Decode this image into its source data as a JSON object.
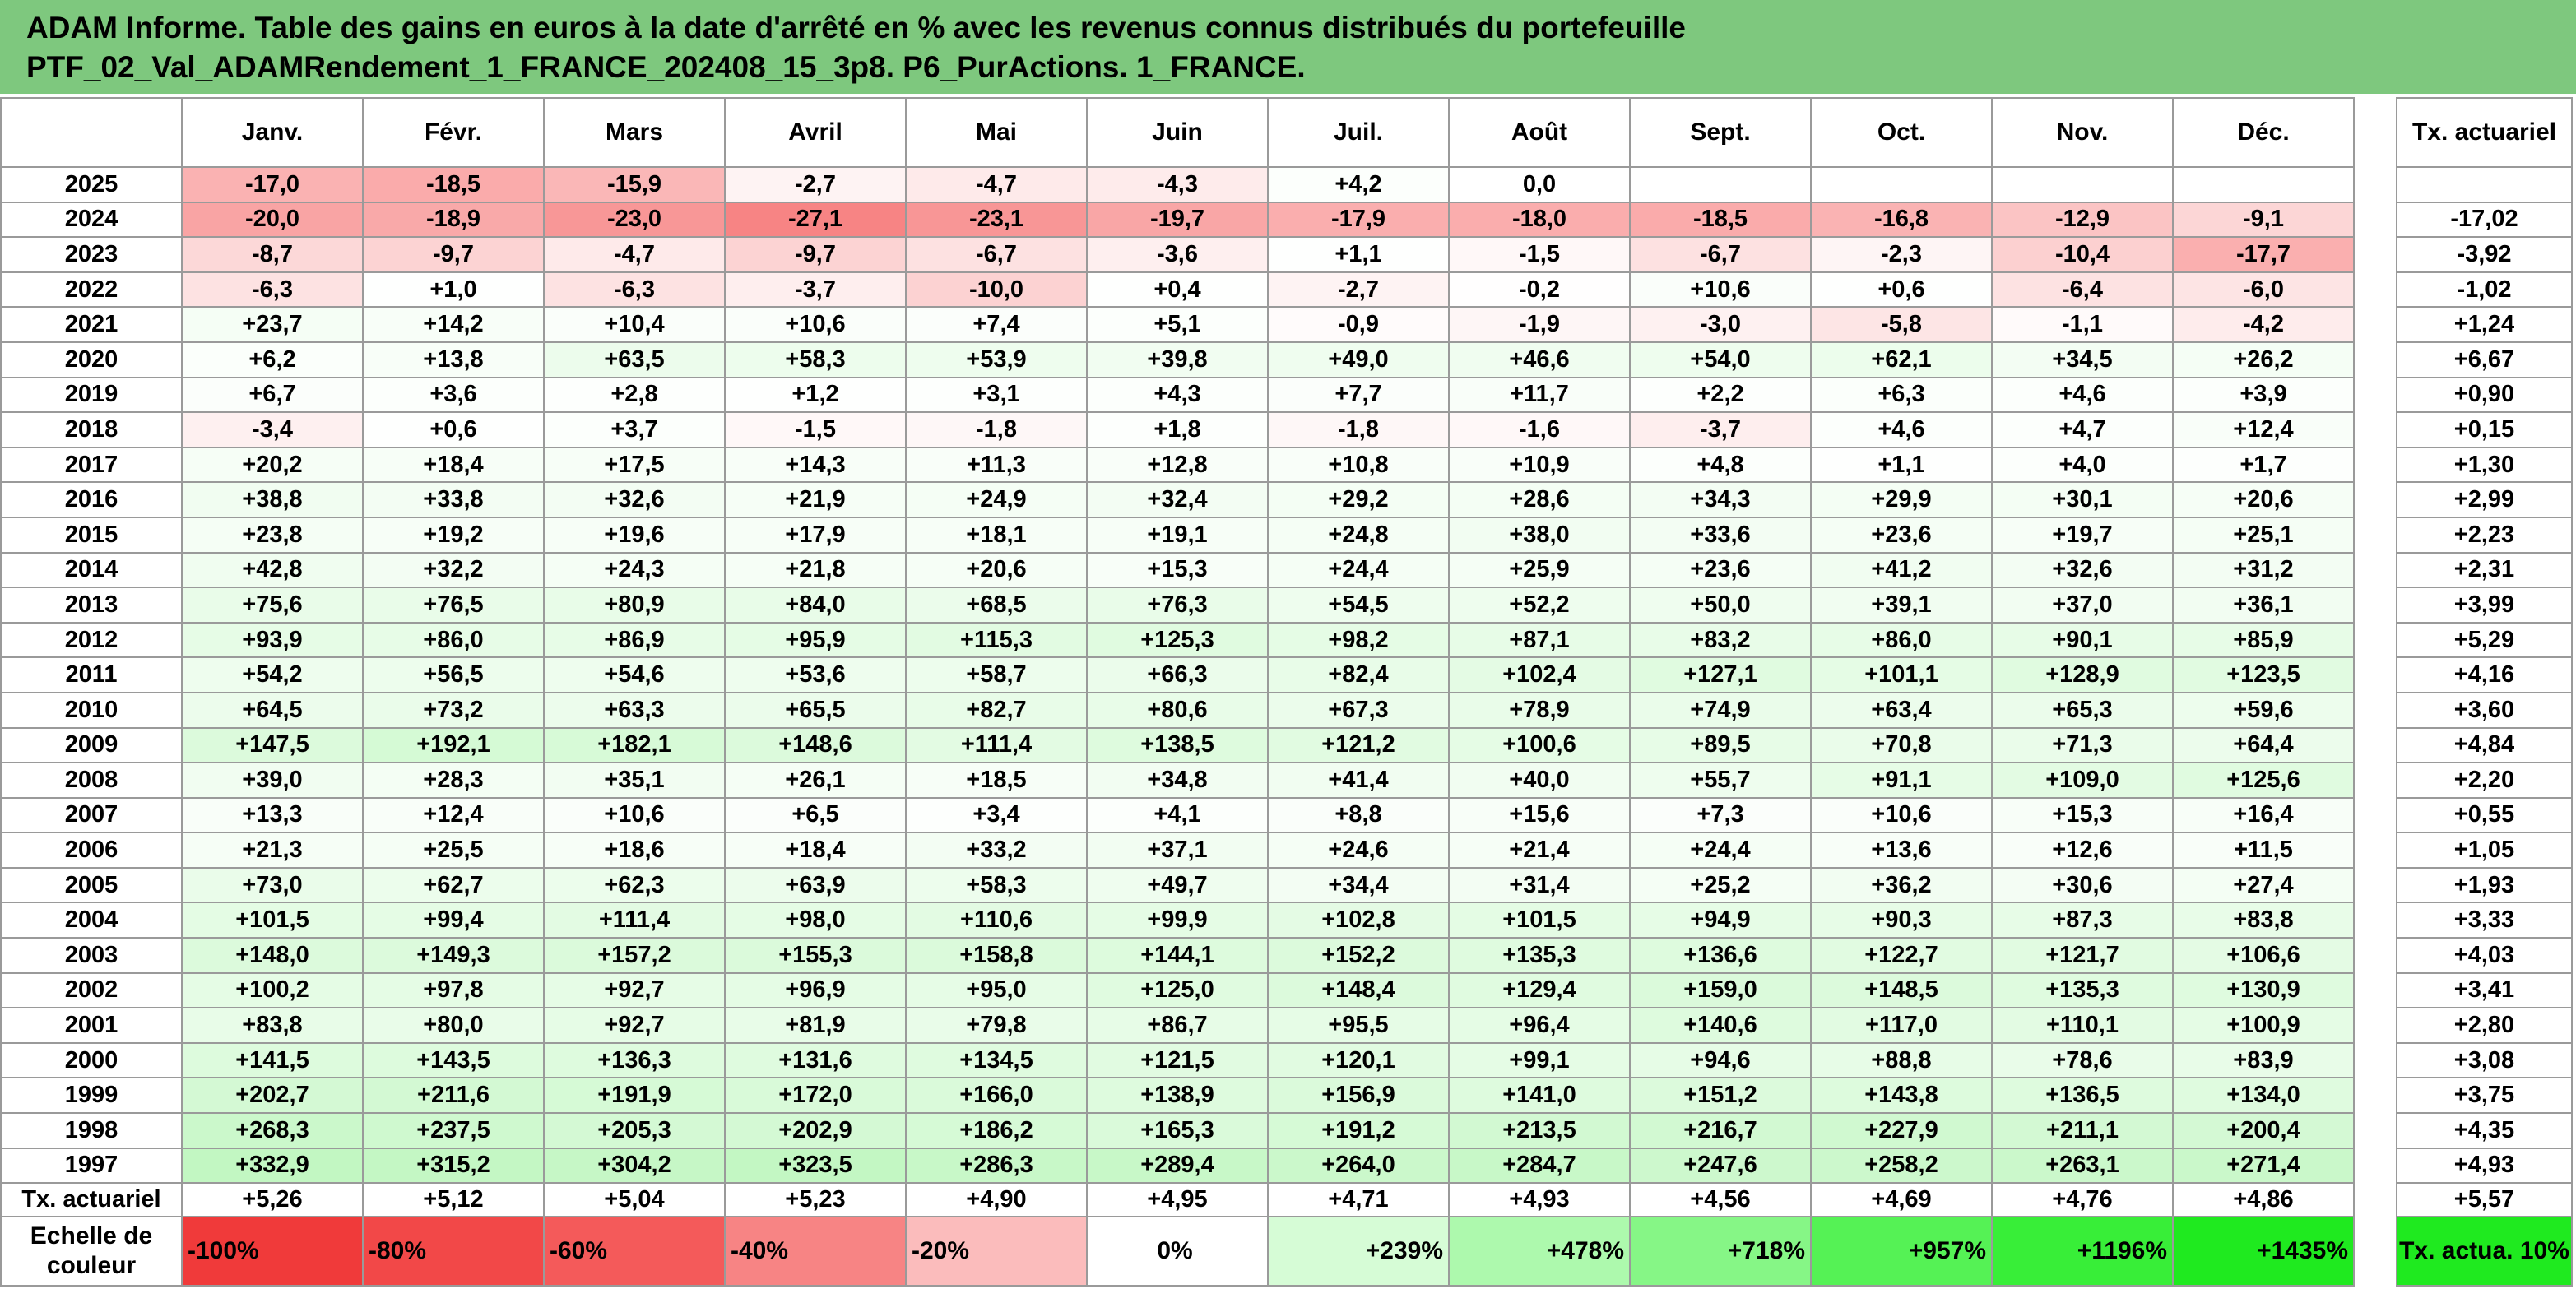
{
  "title": {
    "line1": "ADAM Informe. Table des gains en euros à la date d'arrêté en % avec les revenus connus distribués du portefeuille",
    "line2": "PTF_02_Val_ADAMRendement_1_FRANCE_202408_15_3p8. P6_PurActions. 1_FRANCE."
  },
  "months": [
    "Janv.",
    "Févr.",
    "Mars",
    "Avril",
    "Mai",
    "Juin",
    "Juil.",
    "Août",
    "Sept.",
    "Oct.",
    "Nov.",
    "Déc."
  ],
  "actuarial_header": "Tx. actuariel",
  "rows": [
    {
      "year": "2025",
      "vals": [
        "-17,0",
        "-18,5",
        "-15,9",
        "-2,7",
        "-4,7",
        "-4,3",
        "+4,2",
        "0,0",
        "",
        "",
        "",
        ""
      ],
      "act": ""
    },
    {
      "year": "2024",
      "vals": [
        "-20,0",
        "-18,9",
        "-23,0",
        "-27,1",
        "-23,1",
        "-19,7",
        "-17,9",
        "-18,0",
        "-18,5",
        "-16,8",
        "-12,9",
        "-9,1"
      ],
      "act": "-17,02"
    },
    {
      "year": "2023",
      "vals": [
        "-8,7",
        "-9,7",
        "-4,7",
        "-9,7",
        "-6,7",
        "-3,6",
        "+1,1",
        "-1,5",
        "-6,7",
        "-2,3",
        "-10,4",
        "-17,7"
      ],
      "act": "-3,92"
    },
    {
      "year": "2022",
      "vals": [
        "-6,3",
        "+1,0",
        "-6,3",
        "-3,7",
        "-10,0",
        "+0,4",
        "-2,7",
        "-0,2",
        "+10,6",
        "+0,6",
        "-6,4",
        "-6,0"
      ],
      "act": "-1,02"
    },
    {
      "year": "2021",
      "vals": [
        "+23,7",
        "+14,2",
        "+10,4",
        "+10,6",
        "+7,4",
        "+5,1",
        "-0,9",
        "-1,9",
        "-3,0",
        "-5,8",
        "-1,1",
        "-4,2"
      ],
      "act": "+1,24"
    },
    {
      "year": "2020",
      "vals": [
        "+6,2",
        "+13,8",
        "+63,5",
        "+58,3",
        "+53,9",
        "+39,8",
        "+49,0",
        "+46,6",
        "+54,0",
        "+62,1",
        "+34,5",
        "+26,2"
      ],
      "act": "+6,67"
    },
    {
      "year": "2019",
      "vals": [
        "+6,7",
        "+3,6",
        "+2,8",
        "+1,2",
        "+3,1",
        "+4,3",
        "+7,7",
        "+11,7",
        "+2,2",
        "+6,3",
        "+4,6",
        "+3,9"
      ],
      "act": "+0,90"
    },
    {
      "year": "2018",
      "vals": [
        "-3,4",
        "+0,6",
        "+3,7",
        "-1,5",
        "-1,8",
        "+1,8",
        "-1,8",
        "-1,6",
        "-3,7",
        "+4,6",
        "+4,7",
        "+12,4"
      ],
      "act": "+0,15"
    },
    {
      "year": "2017",
      "vals": [
        "+20,2",
        "+18,4",
        "+17,5",
        "+14,3",
        "+11,3",
        "+12,8",
        "+10,8",
        "+10,9",
        "+4,8",
        "+1,1",
        "+4,0",
        "+1,7"
      ],
      "act": "+1,30"
    },
    {
      "year": "2016",
      "vals": [
        "+38,8",
        "+33,8",
        "+32,6",
        "+21,9",
        "+24,9",
        "+32,4",
        "+29,2",
        "+28,6",
        "+34,3",
        "+29,9",
        "+30,1",
        "+20,6"
      ],
      "act": "+2,99"
    },
    {
      "year": "2015",
      "vals": [
        "+23,8",
        "+19,2",
        "+19,6",
        "+17,9",
        "+18,1",
        "+19,1",
        "+24,8",
        "+38,0",
        "+33,6",
        "+23,6",
        "+19,7",
        "+25,1"
      ],
      "act": "+2,23"
    },
    {
      "year": "2014",
      "vals": [
        "+42,8",
        "+32,2",
        "+24,3",
        "+21,8",
        "+20,6",
        "+15,3",
        "+24,4",
        "+25,9",
        "+23,6",
        "+41,2",
        "+32,6",
        "+31,2"
      ],
      "act": "+2,31"
    },
    {
      "year": "2013",
      "vals": [
        "+75,6",
        "+76,5",
        "+80,9",
        "+84,0",
        "+68,5",
        "+76,3",
        "+54,5",
        "+52,2",
        "+50,0",
        "+39,1",
        "+37,0",
        "+36,1"
      ],
      "act": "+3,99"
    },
    {
      "year": "2012",
      "vals": [
        "+93,9",
        "+86,0",
        "+86,9",
        "+95,9",
        "+115,3",
        "+125,3",
        "+98,2",
        "+87,1",
        "+83,2",
        "+86,0",
        "+90,1",
        "+85,9"
      ],
      "act": "+5,29"
    },
    {
      "year": "2011",
      "vals": [
        "+54,2",
        "+56,5",
        "+54,6",
        "+53,6",
        "+58,7",
        "+66,3",
        "+82,4",
        "+102,4",
        "+127,1",
        "+101,1",
        "+128,9",
        "+123,5"
      ],
      "act": "+4,16"
    },
    {
      "year": "2010",
      "vals": [
        "+64,5",
        "+73,2",
        "+63,3",
        "+65,5",
        "+82,7",
        "+80,6",
        "+67,3",
        "+78,9",
        "+74,9",
        "+63,4",
        "+65,3",
        "+59,6"
      ],
      "act": "+3,60"
    },
    {
      "year": "2009",
      "vals": [
        "+147,5",
        "+192,1",
        "+182,1",
        "+148,6",
        "+111,4",
        "+138,5",
        "+121,2",
        "+100,6",
        "+89,5",
        "+70,8",
        "+71,3",
        "+64,4"
      ],
      "act": "+4,84"
    },
    {
      "year": "2008",
      "vals": [
        "+39,0",
        "+28,3",
        "+35,1",
        "+26,1",
        "+18,5",
        "+34,8",
        "+41,4",
        "+40,0",
        "+55,7",
        "+91,1",
        "+109,0",
        "+125,6"
      ],
      "act": "+2,20"
    },
    {
      "year": "2007",
      "vals": [
        "+13,3",
        "+12,4",
        "+10,6",
        "+6,5",
        "+3,4",
        "+4,1",
        "+8,8",
        "+15,6",
        "+7,3",
        "+10,6",
        "+15,3",
        "+16,4"
      ],
      "act": "+0,55"
    },
    {
      "year": "2006",
      "vals": [
        "+21,3",
        "+25,5",
        "+18,6",
        "+18,4",
        "+33,2",
        "+37,1",
        "+24,6",
        "+21,4",
        "+24,4",
        "+13,6",
        "+12,6",
        "+11,5"
      ],
      "act": "+1,05"
    },
    {
      "year": "2005",
      "vals": [
        "+73,0",
        "+62,7",
        "+62,3",
        "+63,9",
        "+58,3",
        "+49,7",
        "+34,4",
        "+31,4",
        "+25,2",
        "+36,2",
        "+30,6",
        "+27,4"
      ],
      "act": "+1,93"
    },
    {
      "year": "2004",
      "vals": [
        "+101,5",
        "+99,4",
        "+111,4",
        "+98,0",
        "+110,6",
        "+99,9",
        "+102,8",
        "+101,5",
        "+94,9",
        "+90,3",
        "+87,3",
        "+83,8"
      ],
      "act": "+3,33"
    },
    {
      "year": "2003",
      "vals": [
        "+148,0",
        "+149,3",
        "+157,2",
        "+155,3",
        "+158,8",
        "+144,1",
        "+152,2",
        "+135,3",
        "+136,6",
        "+122,7",
        "+121,7",
        "+106,6"
      ],
      "act": "+4,03"
    },
    {
      "year": "2002",
      "vals": [
        "+100,2",
        "+97,8",
        "+92,7",
        "+96,9",
        "+95,0",
        "+125,0",
        "+148,4",
        "+129,4",
        "+159,0",
        "+148,5",
        "+135,3",
        "+130,9"
      ],
      "act": "+3,41"
    },
    {
      "year": "2001",
      "vals": [
        "+83,8",
        "+80,0",
        "+92,7",
        "+81,9",
        "+79,8",
        "+86,7",
        "+95,5",
        "+96,4",
        "+140,6",
        "+117,0",
        "+110,1",
        "+100,9"
      ],
      "act": "+2,80"
    },
    {
      "year": "2000",
      "vals": [
        "+141,5",
        "+143,5",
        "+136,3",
        "+131,6",
        "+134,5",
        "+121,5",
        "+120,1",
        "+99,1",
        "+94,6",
        "+88,8",
        "+78,6",
        "+83,9"
      ],
      "act": "+3,08"
    },
    {
      "year": "1999",
      "vals": [
        "+202,7",
        "+211,6",
        "+191,9",
        "+172,0",
        "+166,0",
        "+138,9",
        "+156,9",
        "+141,0",
        "+151,2",
        "+143,8",
        "+136,5",
        "+134,0"
      ],
      "act": "+3,75"
    },
    {
      "year": "1998",
      "vals": [
        "+268,3",
        "+237,5",
        "+205,3",
        "+202,9",
        "+186,2",
        "+165,3",
        "+191,2",
        "+213,5",
        "+216,7",
        "+227,9",
        "+211,1",
        "+200,4"
      ],
      "act": "+4,35"
    },
    {
      "year": "1997",
      "vals": [
        "+332,9",
        "+315,2",
        "+304,2",
        "+323,5",
        "+286,3",
        "+289,4",
        "+264,0",
        "+284,7",
        "+247,6",
        "+258,2",
        "+263,1",
        "+271,4"
      ],
      "act": "+4,93"
    }
  ],
  "actuarial_row": {
    "label": "Tx. actuariel",
    "vals": [
      "+5,26",
      "+5,12",
      "+5,04",
      "+5,23",
      "+4,90",
      "+4,95",
      "+4,71",
      "+4,93",
      "+4,56",
      "+4,69",
      "+4,76",
      "+4,86"
    ],
    "act": "+5,57"
  },
  "scale_row": {
    "label": "Echelle de couleur",
    "cells": [
      {
        "text": "-100%",
        "color": "#f03a3a"
      },
      {
        "text": "-80%",
        "color": "#f24848"
      },
      {
        "text": "-60%",
        "color": "#f45a5a"
      },
      {
        "text": "-40%",
        "color": "#f78484"
      },
      {
        "text": "-20%",
        "color": "#fbbcbc"
      },
      {
        "text": "0%",
        "color": "#ffffff"
      },
      {
        "text": "+239%",
        "color": "#d6fcd6"
      },
      {
        "text": "+478%",
        "color": "#adf9ad"
      },
      {
        "text": "+718%",
        "color": "#86f686"
      },
      {
        "text": "+957%",
        "color": "#55f255"
      },
      {
        "text": "+1196%",
        "color": "#38ee38"
      },
      {
        "text": "+1435%",
        "color": "#1fea1f"
      }
    ],
    "act_label": "Tx. actua. 10%",
    "act_color": "#1fea1f"
  },
  "colors": {
    "title_bg": "#7ec87e",
    "negative_max": "#f78484",
    "positive_max": "#c2f7c2"
  }
}
